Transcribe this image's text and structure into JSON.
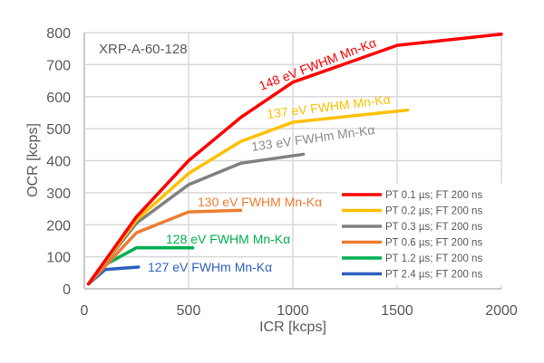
{
  "chart_data": {
    "type": "line",
    "title": "",
    "inset_label": "XRP-A-60-128",
    "xlabel": "ICR [kcps]",
    "ylabel": "OCR [kcps]",
    "xlim": [
      0,
      2000
    ],
    "ylim": [
      0,
      800
    ],
    "xticks": [
      0,
      500,
      1000,
      1500,
      2000
    ],
    "yticks": [
      0,
      100,
      200,
      300,
      400,
      500,
      600,
      700,
      800
    ],
    "grid": true,
    "legend_position": "bottom-right",
    "series": [
      {
        "name": "PT 0.1 µs; FT 200 ns",
        "color": "#ff0000",
        "annotation": "148 eV FWHM Mn-Kα",
        "x": [
          20,
          250,
          500,
          750,
          1000,
          1500,
          2000
        ],
        "y": [
          15,
          225,
          400,
          535,
          645,
          760,
          795
        ]
      },
      {
        "name": "PT 0.2 µs; FT 200 ns",
        "color": "#ffc000",
        "annotation": "137 eV FWHM Mn-Kα",
        "x": [
          20,
          250,
          500,
          750,
          1000,
          1550
        ],
        "y": [
          15,
          215,
          360,
          460,
          520,
          558
        ]
      },
      {
        "name": "PT 0.3 µs; FT 200 ns",
        "color": "#808080",
        "annotation": "133 eV FWHm Mn-Kα",
        "x": [
          20,
          250,
          500,
          750,
          1050
        ],
        "y": [
          15,
          205,
          325,
          392,
          420
        ]
      },
      {
        "name": "PT 0.6 µs; FT 200 ns",
        "color": "#ed7d31",
        "annotation": "130 eV FWHM Mn-Kα",
        "x": [
          20,
          250,
          500,
          750
        ],
        "y": [
          15,
          175,
          240,
          245
        ]
      },
      {
        "name": "PT 1.2 µs; FT 200 ns",
        "color": "#00b050",
        "annotation": "128 eV FWHM Mn-Kα",
        "x": [
          20,
          100,
          250,
          520
        ],
        "y": [
          15,
          75,
          128,
          128
        ]
      },
      {
        "name": "PT 2.4 µs; FT 200 ns",
        "color": "#2e5fbf",
        "annotation": "127 eV FWHm Mn-Kα",
        "x": [
          20,
          100,
          260
        ],
        "y": [
          15,
          60,
          68
        ]
      }
    ]
  }
}
